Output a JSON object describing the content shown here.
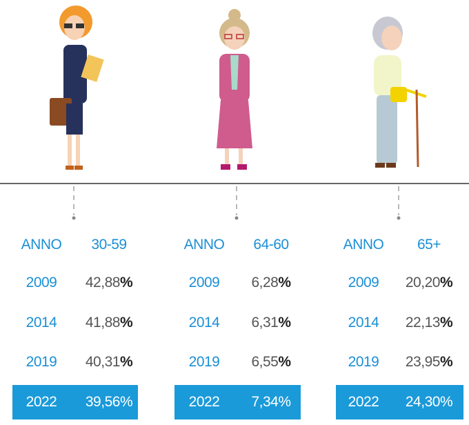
{
  "groups": [
    {
      "header": [
        "ANNO",
        "30-59"
      ],
      "rows": [
        {
          "year": "2009",
          "value": "42,88",
          "unit": "%"
        },
        {
          "year": "2014",
          "value": "41,88",
          "unit": "%"
        },
        {
          "year": "2019",
          "value": "40,31",
          "unit": "%"
        },
        {
          "year": "2022",
          "value": "39,56",
          "unit": "%"
        }
      ]
    },
    {
      "header": [
        "ANNO",
        "64-60"
      ],
      "rows": [
        {
          "year": "2009",
          "value": "6,28",
          "unit": "%"
        },
        {
          "year": "2014",
          "value": "6,31",
          "unit": "%"
        },
        {
          "year": "2019",
          "value": "6,55",
          "unit": "%"
        },
        {
          "year": "2022",
          "value": "7,34",
          "unit": "%"
        }
      ]
    },
    {
      "header": [
        "ANNO",
        "65+"
      ],
      "rows": [
        {
          "year": "2009",
          "value": "20,20",
          "unit": "%"
        },
        {
          "year": "2014",
          "value": "22,13",
          "unit": "%"
        },
        {
          "year": "2019",
          "value": "23,95",
          "unit": "%"
        },
        {
          "year": "2022",
          "value": "24,30",
          "unit": "%"
        }
      ]
    }
  ]
}
